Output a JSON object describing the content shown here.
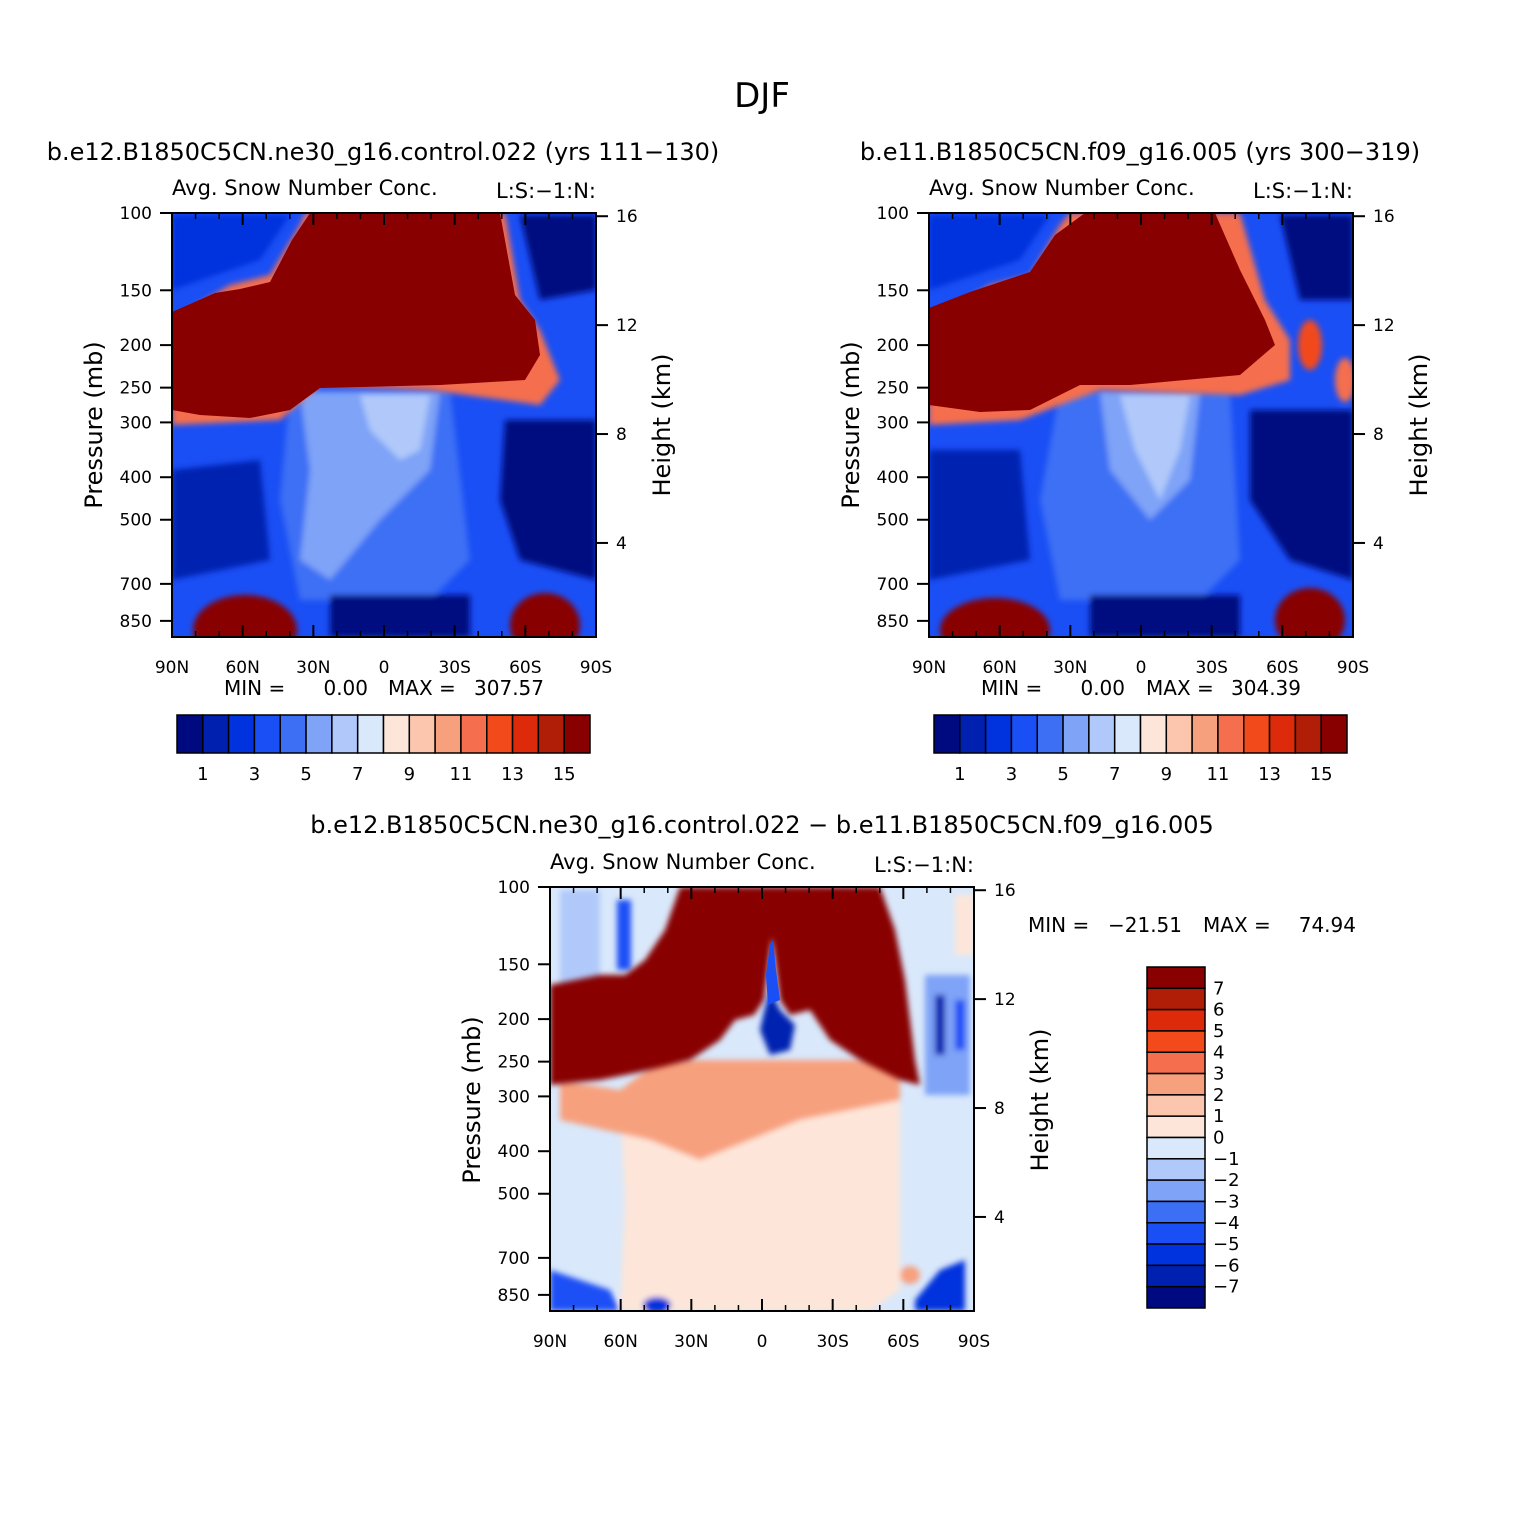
{
  "figure": {
    "title": "DJF"
  },
  "colors": {
    "abs_palette": [
      "#000a80",
      "#0020b0",
      "#0033dd",
      "#1a4ff5",
      "#3d6ff5",
      "#7ea3f7",
      "#b0c9fa",
      "#d9e8fb",
      "#fde6d9",
      "#fbc6ad",
      "#f7a07e",
      "#f56e4d",
      "#f24a1a",
      "#dd2a0a",
      "#b01e08",
      "#880000"
    ],
    "diff_palette": [
      "#000a80",
      "#0020b0",
      "#0033dd",
      "#1a4ff5",
      "#3d6ff5",
      "#7ea3f7",
      "#b0c9fa",
      "#d9e8fb",
      "#fde6d9",
      "#fbc6ad",
      "#f7a07e",
      "#f56e4d",
      "#f24a1a",
      "#dd2a0a",
      "#b01e08",
      "#880000"
    ]
  },
  "chart_data": [
    {
      "type": "heatmap",
      "title": "b.e12.B1850C5CN.ne30_g16.control.022 (yrs 111−130)",
      "subtitle": "Avg. Snow Number Conc.",
      "units_label": "L:S:−1:N:",
      "ylabel": "Pressure (mb)",
      "y2label": "Height (km)",
      "x_ticks": [
        "90N",
        "60N",
        "30N",
        "0",
        "30S",
        "60S",
        "90S"
      ],
      "y_ticks": [
        "100",
        "150",
        "200",
        "250",
        "300",
        "400",
        "500",
        "700",
        "850"
      ],
      "y2_ticks": [
        "16",
        "12",
        "8",
        "4"
      ],
      "stats": {
        "min_label": "MIN =",
        "min": "0.00",
        "max_label": "MAX =",
        "max": "307.57"
      },
      "colorbar_labels": [
        "1",
        "3",
        "5",
        "7",
        "9",
        "11",
        "13",
        "15"
      ],
      "variant": 0
    },
    {
      "type": "heatmap",
      "title": "b.e11.B1850C5CN.f09_g16.005 (yrs 300−319)",
      "subtitle": "Avg. Snow Number Conc.",
      "units_label": "L:S:−1:N:",
      "ylabel": "Pressure (mb)",
      "y2label": "Height (km)",
      "x_ticks": [
        "90N",
        "60N",
        "30N",
        "0",
        "30S",
        "60S",
        "90S"
      ],
      "y_ticks": [
        "100",
        "150",
        "200",
        "250",
        "300",
        "400",
        "500",
        "700",
        "850"
      ],
      "y2_ticks": [
        "16",
        "12",
        "8",
        "4"
      ],
      "stats": {
        "min_label": "MIN =",
        "min": "0.00",
        "max_label": "MAX =",
        "max": "304.39"
      },
      "colorbar_labels": [
        "1",
        "3",
        "5",
        "7",
        "9",
        "11",
        "13",
        "15"
      ],
      "variant": 1
    },
    {
      "type": "heatmap",
      "title": "b.e12.B1850C5CN.ne30_g16.control.022 − b.e11.B1850C5CN.f09_g16.005",
      "subtitle": "Avg. Snow Number Conc.",
      "units_label": "L:S:−1:N:",
      "ylabel": "Pressure (mb)",
      "y2label": "Height (km)",
      "x_ticks": [
        "90N",
        "60N",
        "30N",
        "0",
        "30S",
        "60S",
        "90S"
      ],
      "y_ticks": [
        "100",
        "150",
        "200",
        "250",
        "300",
        "400",
        "500",
        "700",
        "850"
      ],
      "y2_ticks": [
        "16",
        "12",
        "8",
        "4"
      ],
      "stats": {
        "min_label": "MIN =",
        "min": "−21.51",
        "max_label": "MAX =",
        "max": "74.94"
      },
      "colorbar_labels": [
        "7",
        "6",
        "5",
        "4",
        "3",
        "2",
        "1",
        "0",
        "−1",
        "−2",
        "−3",
        "−4",
        "−5",
        "−6",
        "−7"
      ]
    }
  ]
}
